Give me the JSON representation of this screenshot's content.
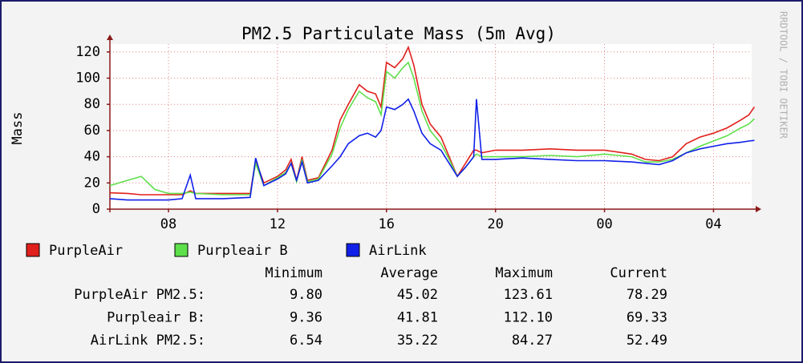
{
  "chart_data": {
    "type": "line",
    "title": "PM2.5 Particulate Mass (5m Avg)",
    "y_label": "Mass",
    "side_label": "RRDTOOL / TOBI OETIKER",
    "x": [
      5.85,
      6.5,
      7,
      7.5,
      8,
      8.5,
      8.8,
      9,
      10,
      11,
      11.2,
      11.5,
      12,
      12.3,
      12.5,
      12.7,
      12.9,
      13.1,
      13.5,
      14,
      14.3,
      14.6,
      15,
      15.3,
      15.6,
      15.8,
      16,
      16.3,
      16.6,
      16.8,
      17,
      17.3,
      17.6,
      18,
      18.3,
      18.6,
      18.9,
      19.2,
      19.3,
      19.5,
      20,
      21,
      22,
      23,
      24,
      25,
      25.5,
      26,
      26.5,
      27,
      27.5,
      28,
      28.5,
      29,
      29.3,
      29.5
    ],
    "xlim": [
      5.85,
      29.4
    ],
    "xticks": [
      {
        "value": 8,
        "label": "08"
      },
      12,
      16,
      20,
      {
        "value": 24,
        "label": "00"
      },
      {
        "value": 28,
        "label": "04"
      }
    ],
    "ylim": [
      0,
      126
    ],
    "yticks": [
      0,
      20,
      40,
      60,
      80,
      100,
      120
    ],
    "grid": true,
    "series": [
      {
        "name": "PurpleAir",
        "color": "#e0201c",
        "values": [
          12.5,
          12,
          11,
          11,
          11,
          11,
          14,
          12,
          12,
          12,
          37,
          20,
          25,
          30,
          38,
          22,
          40,
          22,
          24,
          45,
          68,
          80,
          95,
          90,
          88,
          78,
          112,
          108,
          115,
          123.6,
          110,
          80,
          65,
          55,
          40,
          25,
          35,
          45,
          45,
          43,
          45,
          45,
          46,
          45,
          45,
          42,
          38,
          37,
          40,
          50,
          55,
          58,
          62,
          68,
          72,
          78
        ]
      },
      {
        "name": "Purpleair B",
        "color": "#5ee04a",
        "values": [
          18,
          22,
          25,
          15,
          12,
          12,
          13,
          12,
          11,
          11,
          35,
          18,
          24,
          28,
          35,
          21,
          38,
          21,
          23,
          42,
          62,
          76,
          90,
          85,
          82,
          72,
          105,
          100,
          108,
          112,
          100,
          75,
          60,
          50,
          38,
          25,
          32,
          40,
          42,
          40,
          40,
          40,
          41,
          40,
          42,
          40,
          36,
          36,
          38,
          43,
          48,
          52,
          56,
          62,
          65,
          69
        ]
      },
      {
        "name": "AirLink",
        "color": "#1020e8",
        "values": [
          8,
          7,
          7,
          7,
          7,
          8,
          26,
          8,
          8,
          9,
          39,
          18,
          23,
          27,
          35,
          22,
          36,
          20,
          22,
          33,
          40,
          50,
          56,
          58,
          55,
          60,
          78,
          76,
          80,
          84,
          75,
          58,
          50,
          45,
          35,
          25,
          32,
          40,
          84,
          38,
          38,
          39,
          38,
          37,
          37,
          36,
          35,
          34,
          37,
          43,
          46,
          48,
          50,
          51,
          52,
          52.5
        ]
      }
    ],
    "stats": {
      "columns": [
        "Minimum",
        "Average",
        "Maximum",
        "Current"
      ],
      "rows": [
        {
          "name": "PurpleAir PM2.5:",
          "cells": [
            "9.80",
            "45.02",
            "123.61",
            "78.29"
          ]
        },
        {
          "name": "Purpleair B:",
          "cells": [
            "9.36",
            "41.81",
            "112.10",
            "69.33"
          ]
        },
        {
          "name": "AirLink PM2.5:",
          "cells": [
            "6.54",
            "35.22",
            "84.27",
            "52.49"
          ]
        }
      ]
    }
  }
}
